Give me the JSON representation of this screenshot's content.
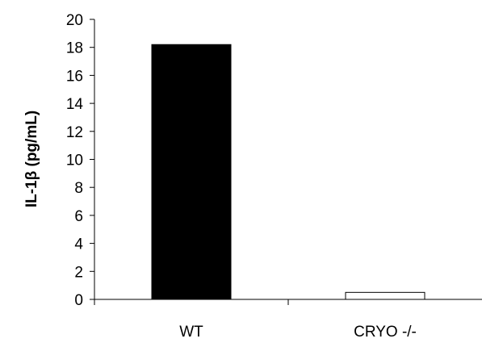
{
  "chart_data": {
    "type": "bar",
    "title": "",
    "xlabel": "",
    "ylabel": "IL-1β (pg/mL)",
    "categories": [
      "WT",
      "CRYO -/-"
    ],
    "values": [
      18.2,
      0.5
    ],
    "ylim": [
      0,
      20
    ],
    "yticks": [
      0,
      2,
      4,
      6,
      8,
      10,
      12,
      14,
      16,
      18,
      20
    ],
    "bar_fill_colors": [
      "#000000",
      "#ffffff"
    ],
    "bar_stroke_color": "#000000",
    "grid": false,
    "legend": "none"
  }
}
